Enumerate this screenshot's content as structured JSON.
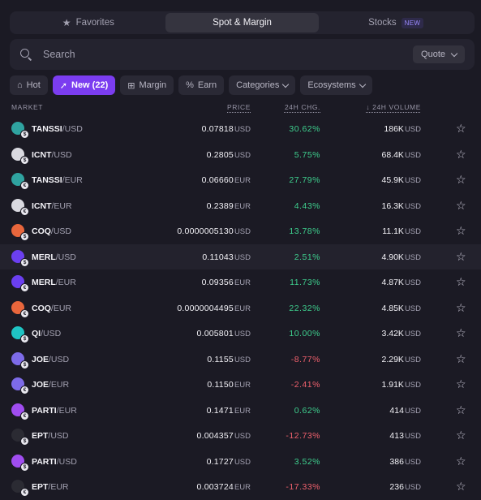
{
  "tabs": [
    {
      "label": "Favorites",
      "icon": "star-icon"
    },
    {
      "label": "Spot & Margin",
      "active": true
    },
    {
      "label": "Stocks",
      "badge": "NEW"
    }
  ],
  "search": {
    "placeholder": "Search",
    "quote_label": "Quote"
  },
  "filters": [
    {
      "label": "Hot",
      "icon": "flame-icon"
    },
    {
      "label": "New (22)",
      "icon": "rocket-icon",
      "active": true
    },
    {
      "label": "Margin",
      "icon": "margin-icon"
    },
    {
      "label": "Earn",
      "icon": "percent-icon"
    },
    {
      "label": "Categories",
      "dropdown": true
    },
    {
      "label": "Ecosystems",
      "dropdown": true
    }
  ],
  "columns": {
    "market": "MARKET",
    "price": "PRICE",
    "change": "24H CHG.",
    "volume": "↓ 24H VOLUME"
  },
  "colors": {
    "accent": "#7b3df0",
    "up": "#3ecf8e",
    "down": "#f0616d"
  },
  "rows": [
    {
      "base": "TANSSI",
      "quote": "/USD",
      "price": "0.07818",
      "price_cur": "USD",
      "change": "30.62%",
      "dir": "up",
      "volume": "186K",
      "vol_cur": "USD",
      "coin_color": "#2fa3a0",
      "qglyph": "$"
    },
    {
      "base": "ICNT",
      "quote": "/USD",
      "price": "0.2805",
      "price_cur": "USD",
      "change": "5.75%",
      "dir": "up",
      "volume": "68.4K",
      "vol_cur": "USD",
      "coin_color": "#d9d9e0",
      "qglyph": "$"
    },
    {
      "base": "TANSSI",
      "quote": "/EUR",
      "price": "0.06660",
      "price_cur": "EUR",
      "change": "27.79%",
      "dir": "up",
      "volume": "45.9K",
      "vol_cur": "USD",
      "coin_color": "#2fa3a0",
      "qglyph": "€"
    },
    {
      "base": "ICNT",
      "quote": "/EUR",
      "price": "0.2389",
      "price_cur": "EUR",
      "change": "4.43%",
      "dir": "up",
      "volume": "16.3K",
      "vol_cur": "USD",
      "coin_color": "#d9d9e0",
      "qglyph": "€"
    },
    {
      "base": "COQ",
      "quote": "/USD",
      "price": "0.0000005130",
      "price_cur": "USD",
      "change": "13.78%",
      "dir": "up",
      "volume": "11.1K",
      "vol_cur": "USD",
      "coin_color": "#e8663c",
      "qglyph": "$"
    },
    {
      "base": "MERL",
      "quote": "/USD",
      "price": "0.11043",
      "price_cur": "USD",
      "change": "2.51%",
      "dir": "up",
      "volume": "4.90K",
      "vol_cur": "USD",
      "coin_color": "#6b3ff0",
      "qglyph": "$",
      "highlight": true
    },
    {
      "base": "MERL",
      "quote": "/EUR",
      "price": "0.09356",
      "price_cur": "EUR",
      "change": "11.73%",
      "dir": "up",
      "volume": "4.87K",
      "vol_cur": "USD",
      "coin_color": "#6b3ff0",
      "qglyph": "€"
    },
    {
      "base": "COQ",
      "quote": "/EUR",
      "price": "0.0000004495",
      "price_cur": "EUR",
      "change": "22.32%",
      "dir": "up",
      "volume": "4.85K",
      "vol_cur": "USD",
      "coin_color": "#e8663c",
      "qglyph": "€"
    },
    {
      "base": "QI",
      "quote": "/USD",
      "price": "0.005801",
      "price_cur": "USD",
      "change": "10.00%",
      "dir": "up",
      "volume": "3.42K",
      "vol_cur": "USD",
      "coin_color": "#1fc4c4",
      "qglyph": "$"
    },
    {
      "base": "JOE",
      "quote": "/USD",
      "price": "0.1155",
      "price_cur": "USD",
      "change": "-8.77%",
      "dir": "down",
      "volume": "2.29K",
      "vol_cur": "USD",
      "coin_color": "#7d6be8",
      "qglyph": "$"
    },
    {
      "base": "JOE",
      "quote": "/EUR",
      "price": "0.1150",
      "price_cur": "EUR",
      "change": "-2.41%",
      "dir": "down",
      "volume": "1.91K",
      "vol_cur": "USD",
      "coin_color": "#7d6be8",
      "qglyph": "€"
    },
    {
      "base": "PARTI",
      "quote": "/EUR",
      "price": "0.1471",
      "price_cur": "EUR",
      "change": "0.62%",
      "dir": "up",
      "volume": "414",
      "vol_cur": "USD",
      "coin_color": "#a04df0",
      "qglyph": "€"
    },
    {
      "base": "EPT",
      "quote": "/USD",
      "price": "0.004357",
      "price_cur": "USD",
      "change": "-12.73%",
      "dir": "down",
      "volume": "413",
      "vol_cur": "USD",
      "coin_color": "#2b2b33",
      "qglyph": "$"
    },
    {
      "base": "PARTI",
      "quote": "/USD",
      "price": "0.1727",
      "price_cur": "USD",
      "change": "3.52%",
      "dir": "up",
      "volume": "386",
      "vol_cur": "USD",
      "coin_color": "#a04df0",
      "qglyph": "$"
    },
    {
      "base": "EPT",
      "quote": "/EUR",
      "price": "0.003724",
      "price_cur": "EUR",
      "change": "-17.33%",
      "dir": "down",
      "volume": "236",
      "vol_cur": "USD",
      "coin_color": "#2b2b33",
      "qglyph": "€"
    }
  ]
}
